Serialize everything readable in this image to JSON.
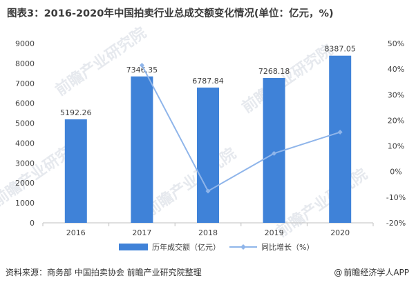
{
  "title": "图表3：2016-2020年中国拍卖行业总成交额变化情况(单位：亿元，%)",
  "source": "资料来源：商务部 中国拍卖协会 前瞻产业研究院整理",
  "credit": "前瞻经济学人APP",
  "credit_icon": "at-icon",
  "watermark": "前瞻产业研究院",
  "colors": {
    "bar": "#3f82d8",
    "line": "#8fb5ea",
    "axis": "#bfbfbf",
    "text": "#404040"
  },
  "chart_data": {
    "type": "bar+line",
    "categories": [
      "2016",
      "2017",
      "2018",
      "2019",
      "2020"
    ],
    "series": [
      {
        "name": "历年成交额（亿元）",
        "type": "bar",
        "axis": "left",
        "values": [
          5192.26,
          7346.35,
          6787.84,
          7268.18,
          8387.05
        ],
        "labels": [
          "5192.26",
          "7346.35",
          "6787.84",
          "7268.18",
          "8387.05"
        ]
      },
      {
        "name": "同比增长（%）",
        "type": "line",
        "axis": "right",
        "values": [
          null,
          41.5,
          -7.6,
          7.1,
          15.4
        ]
      }
    ],
    "y_left": {
      "min": 0,
      "max": 9000,
      "step": 1000,
      "ticks": [
        "0",
        "1000",
        "2000",
        "3000",
        "4000",
        "5000",
        "6000",
        "7000",
        "8000",
        "9000"
      ]
    },
    "y_right": {
      "min": -20,
      "max": 50,
      "step": 10,
      "ticks": [
        "-20%",
        "-10%",
        "0%",
        "10%",
        "20%",
        "30%",
        "40%",
        "50%"
      ]
    },
    "legend_position": "bottom-center"
  }
}
